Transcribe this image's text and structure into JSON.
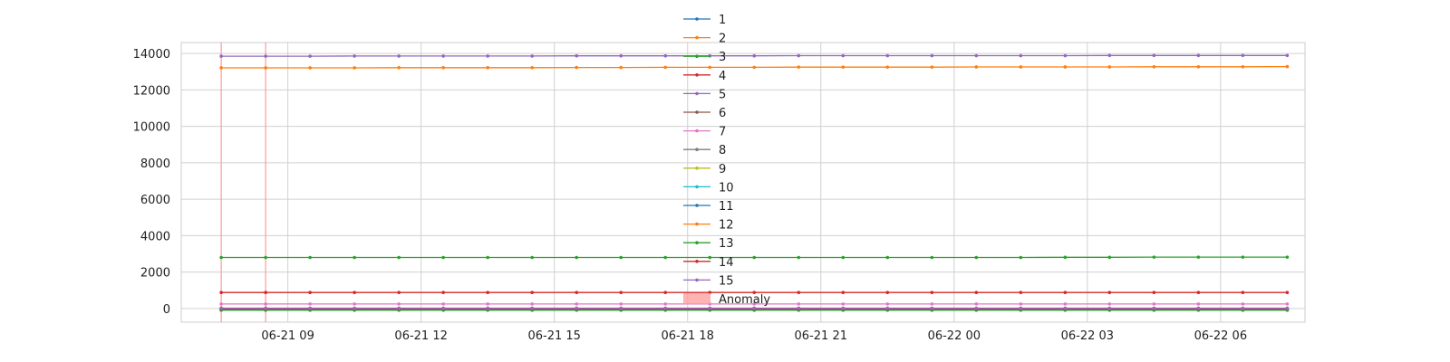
{
  "chart_data": {
    "type": "line",
    "title": "",
    "xlabel": "",
    "ylabel": "",
    "ylim": [
      -750,
      14600
    ],
    "xlim": [
      "2023-06-21T06:36",
      "2023-06-22T07:54"
    ],
    "grid": true,
    "legend": "top-center",
    "x": [
      "2023-06-21T07:30",
      "2023-06-21T08:30",
      "2023-06-21T09:30",
      "2023-06-21T10:30",
      "2023-06-21T11:30",
      "2023-06-21T12:30",
      "2023-06-21T13:30",
      "2023-06-21T14:30",
      "2023-06-21T15:30",
      "2023-06-21T16:30",
      "2023-06-21T17:30",
      "2023-06-21T18:30",
      "2023-06-21T19:30",
      "2023-06-21T20:30",
      "2023-06-21T21:30",
      "2023-06-21T22:30",
      "2023-06-21T23:30",
      "2023-06-22T00:30",
      "2023-06-22T01:30",
      "2023-06-22T02:30",
      "2023-06-22T03:30",
      "2023-06-22T04:30",
      "2023-06-22T05:30",
      "2023-06-22T06:30",
      "2023-06-22T07:30"
    ],
    "yticks": [
      0,
      2000,
      4000,
      6000,
      8000,
      10000,
      12000,
      14000
    ],
    "ytick_labels": [
      "0",
      "2000",
      "4000",
      "6000",
      "8000",
      "10000",
      "12000",
      "14000"
    ],
    "xticks": [
      "2023-06-21T09:00",
      "2023-06-21T12:00",
      "2023-06-21T15:00",
      "2023-06-21T18:00",
      "2023-06-21T21:00",
      "2023-06-22T00:00",
      "2023-06-22T03:00",
      "2023-06-22T06:00"
    ],
    "xtick_labels": [
      "06-21 09",
      "06-21 12",
      "06-21 15",
      "06-21 18",
      "06-21 21",
      "06-22 00",
      "06-22 03",
      "06-22 06"
    ],
    "anomaly_label": "Anomaly",
    "anomaly_color": "#ff9999",
    "anomaly_x": [
      "2023-06-21T07:30",
      "2023-06-21T08:30"
    ],
    "series": [
      {
        "name": "1",
        "color": "#1f77b4",
        "values": [
          -60,
          -60,
          -60,
          -60,
          -60,
          -60,
          -60,
          -60,
          -60,
          -60,
          -60,
          -60,
          -60,
          -60,
          -60,
          -60,
          -60,
          -60,
          -60,
          -60,
          -60,
          -60,
          -60,
          -60,
          -60
        ]
      },
      {
        "name": "2",
        "color": "#ff7f0e",
        "values": [
          13210,
          13210,
          13210,
          13210,
          13220,
          13220,
          13220,
          13220,
          13230,
          13230,
          13240,
          13240,
          13240,
          13250,
          13250,
          13250,
          13250,
          13260,
          13260,
          13260,
          13260,
          13270,
          13270,
          13270,
          13280
        ]
      },
      {
        "name": "3",
        "color": "#2ca02c",
        "values": [
          2800,
          2800,
          2800,
          2800,
          2800,
          2800,
          2800,
          2800,
          2800,
          2800,
          2800,
          2800,
          2800,
          2800,
          2800,
          2800,
          2800,
          2800,
          2800,
          2810,
          2810,
          2820,
          2820,
          2820,
          2820
        ]
      },
      {
        "name": "4",
        "color": "#d62728",
        "values": [
          880,
          880,
          880,
          880,
          880,
          880,
          880,
          880,
          880,
          880,
          880,
          880,
          880,
          880,
          880,
          880,
          880,
          880,
          880,
          880,
          880,
          880,
          880,
          880,
          880
        ]
      },
      {
        "name": "5",
        "color": "#9467bd",
        "values": [
          13850,
          13850,
          13850,
          13860,
          13860,
          13860,
          13860,
          13860,
          13870,
          13870,
          13870,
          13870,
          13870,
          13880,
          13880,
          13880,
          13880,
          13880,
          13880,
          13880,
          13890,
          13890,
          13890,
          13890,
          13890
        ]
      },
      {
        "name": "6",
        "color": "#8c564b",
        "values": [
          20,
          20,
          20,
          20,
          20,
          20,
          20,
          20,
          20,
          20,
          20,
          20,
          20,
          20,
          20,
          20,
          20,
          20,
          20,
          20,
          20,
          20,
          20,
          20,
          20
        ]
      },
      {
        "name": "7",
        "color": "#e377c2",
        "values": [
          250,
          250,
          250,
          250,
          250,
          250,
          250,
          250,
          250,
          250,
          250,
          250,
          250,
          250,
          250,
          250,
          250,
          250,
          250,
          250,
          250,
          250,
          250,
          250,
          250
        ]
      },
      {
        "name": "8",
        "color": "#7f7f7f",
        "values": [
          -30,
          -30,
          -30,
          -30,
          -30,
          -30,
          -30,
          -30,
          -30,
          -30,
          -30,
          -30,
          -30,
          -30,
          -30,
          -30,
          -30,
          -30,
          -30,
          -30,
          -30,
          -30,
          -30,
          -30,
          -30
        ]
      },
      {
        "name": "9",
        "color": "#bcbd22",
        "values": [
          -40,
          -40,
          -40,
          -40,
          -40,
          -40,
          -40,
          -40,
          -40,
          -40,
          -40,
          -40,
          -40,
          -40,
          -40,
          -40,
          -40,
          -40,
          -40,
          -40,
          -40,
          -40,
          -40,
          -40,
          -40
        ]
      },
      {
        "name": "10",
        "color": "#17becf",
        "values": [
          -70,
          -70,
          -70,
          -70,
          -70,
          -70,
          -70,
          -70,
          -70,
          -70,
          -70,
          -70,
          -70,
          -70,
          -70,
          -70,
          -70,
          -70,
          -70,
          -70,
          -70,
          -70,
          -70,
          -70,
          -70
        ]
      },
      {
        "name": "11",
        "color": "#1f77b4",
        "values": [
          -80,
          -80,
          -80,
          -80,
          -80,
          -80,
          -80,
          -80,
          -80,
          -80,
          -80,
          -80,
          -80,
          -80,
          -80,
          -80,
          -80,
          -80,
          -80,
          -80,
          -80,
          -80,
          -80,
          -80,
          -80
        ]
      },
      {
        "name": "12",
        "color": "#ff7f0e",
        "values": [
          -50,
          -50,
          -50,
          -50,
          -50,
          -50,
          -50,
          -50,
          -50,
          -50,
          -50,
          -50,
          -50,
          -50,
          -50,
          -50,
          -50,
          -50,
          -50,
          -50,
          -50,
          -50,
          -50,
          -50,
          -50
        ]
      },
      {
        "name": "13",
        "color": "#2ca02c",
        "values": [
          -90,
          -90,
          -90,
          -90,
          -90,
          -90,
          -90,
          -90,
          -90,
          -90,
          -90,
          -90,
          -90,
          -90,
          -90,
          -90,
          -90,
          -90,
          -90,
          -90,
          -90,
          -90,
          -90,
          -90,
          -90
        ]
      },
      {
        "name": "14",
        "color": "#d62728",
        "values": [
          -20,
          -20,
          -20,
          -20,
          -20,
          -20,
          -20,
          -20,
          -20,
          -20,
          -20,
          -20,
          -20,
          -20,
          -20,
          -20,
          -20,
          -20,
          -20,
          -20,
          -20,
          -20,
          -20,
          -20,
          -20
        ]
      },
      {
        "name": "15",
        "color": "#9467bd",
        "values": [
          10,
          10,
          10,
          10,
          10,
          10,
          10,
          10,
          10,
          10,
          10,
          10,
          10,
          10,
          10,
          10,
          10,
          10,
          10,
          10,
          10,
          10,
          10,
          10,
          10
        ]
      }
    ]
  }
}
